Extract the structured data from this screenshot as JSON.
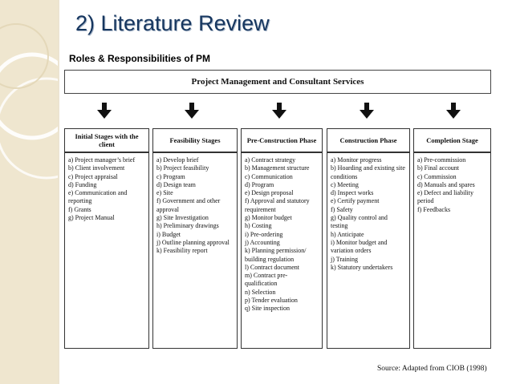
{
  "slide": {
    "title": "2) Literature Review",
    "subtitle": "Roles & Responsibilities of PM"
  },
  "diagram": {
    "banner": "Project Management and Consultant Services",
    "columns": [
      {
        "header": "Initial Stages with the client",
        "items": [
          "a) Project manager’s brief",
          "b) Client involvement",
          "c) Project appraisal",
          "d) Funding",
          "e) Communication and reporting",
          "f) Grants",
          "g) Project Manual"
        ]
      },
      {
        "header": "Feasibility Stages",
        "items": [
          "a) Develop brief",
          "b) Project feasibility",
          "c) Program",
          "d) Design team",
          "e) Site",
          "f) Government and other approval",
          "g) Site Investigation",
          "h) Preliminary drawings",
          "i) Budget",
          "j) Outline planning approval",
          "k) Feasibility report"
        ]
      },
      {
        "header": "Pre-Construction Phase",
        "items": [
          "a) Contract strategy",
          "b) Management structure",
          "c) Communication",
          "d) Program",
          "e) Design proposal",
          "f) Approval and statutory requirement",
          "g) Monitor budget",
          "h) Costing",
          "i) Pre-ordering",
          "j) Accounting",
          "k) Planning permission/ building regulation",
          "l) Contract document",
          "m) Contract pre-qualification",
          "n) Selection",
          "p) Tender evaluation",
          "q) Site inspection"
        ]
      },
      {
        "header": "Construction Phase",
        "items": [
          "a) Monitor progress",
          "b) Hoarding and existing site conditions",
          "c) Meeting",
          "d) Inspect works",
          "e) Certify payment",
          "f) Safety",
          "g) Quality control and testing",
          "h) Anticipate",
          "i) Monitor budget and variation orders",
          "j) Training",
          "k) Statutory undertakers"
        ]
      },
      {
        "header": "Completion Stage",
        "items": [
          "a) Pre-commission",
          "b) Final account",
          "c) Commission",
          "d) Manuals and spares",
          "e) Defect and liability period",
          "f) Feedbacks"
        ]
      }
    ],
    "source": "Source: Adapted from CIOB (1998)"
  },
  "colors": {
    "title": "#16365f",
    "side_band": "#efe6cf",
    "border": "#333333"
  }
}
